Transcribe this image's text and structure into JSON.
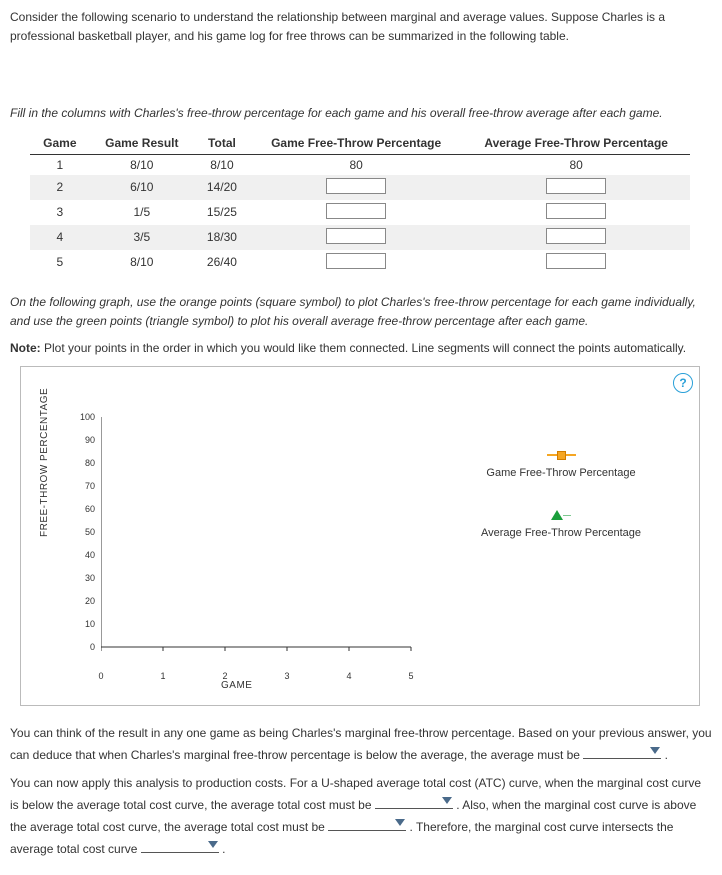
{
  "intro": "Consider the following scenario to understand the relationship between marginal and average values. Suppose Charles is a professional basketball player, and his game log for free throws can be summarized in the following table.",
  "fill_instr": "Fill in the columns with Charles's free-throw percentage for each game and his overall free-throw average after each game.",
  "table": {
    "headers": [
      "Game",
      "Game Result",
      "Total",
      "Game Free-Throw Percentage",
      "Average Free-Throw Percentage"
    ],
    "rows": [
      {
        "game": "1",
        "result": "8/10",
        "total": "8/10",
        "gftp": "80",
        "aftp": "80",
        "editable": false
      },
      {
        "game": "2",
        "result": "6/10",
        "total": "14/20",
        "gftp": "",
        "aftp": "",
        "editable": true
      },
      {
        "game": "3",
        "result": "1/5",
        "total": "15/25",
        "gftp": "",
        "aftp": "",
        "editable": true
      },
      {
        "game": "4",
        "result": "3/5",
        "total": "18/30",
        "gftp": "",
        "aftp": "",
        "editable": true
      },
      {
        "game": "5",
        "result": "8/10",
        "total": "26/40",
        "gftp": "",
        "aftp": "",
        "editable": true
      }
    ]
  },
  "graph_instr": "On the following graph, use the orange points (square symbol) to plot Charles's free-throw percentage for each game individually, and use the green points (triangle symbol) to plot his overall average free-throw percentage after each game.",
  "note_label": "Note:",
  "note_text": " Plot your points in the order in which you would like them connected. Line segments will connect the points automatically.",
  "help": "?",
  "chart": {
    "ylabel": "FREE-THROW PERCENTAGE",
    "xlabel": "GAME",
    "ymin": 0,
    "ymax": 100,
    "ystep": 10,
    "xmin": 0,
    "xmax": 5,
    "xstep": 1,
    "legend_sq_color": "#f5a623",
    "legend_tri_color": "#1a9e3b",
    "legend_sq_label": "Game Free-Throw Percentage",
    "legend_tri_label": "Average Free-Throw Percentage"
  },
  "conclusion1a": "You can think of the result in any one game as being Charles's marginal free-throw percentage. Based on your previous answer, you can deduce that when Charles's marginal free-throw percentage is below the average, the average must be",
  "conclusion2a": "You can now apply this analysis to production costs. For a U-shaped average total cost (ATC) curve, when the marginal cost curve is below the average total cost curve, the average total cost must be",
  "conclusion2b": " . Also, when the marginal cost curve is above the average total cost curve, the average total cost must be",
  "conclusion2c": " . Therefore, the marginal cost curve intersects the average total cost curve",
  "period": " ."
}
